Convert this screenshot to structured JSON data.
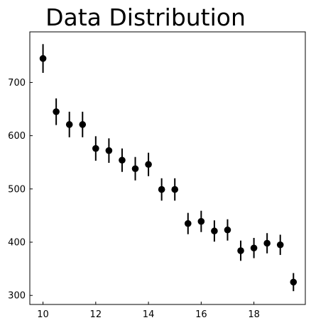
{
  "chart_data": {
    "type": "scatter",
    "title": "Data Distribution",
    "xlabel": "",
    "ylabel": "",
    "xlim": [
      9.5,
      19.95
    ],
    "ylim": [
      283,
      795
    ],
    "x_ticks": [
      10,
      12,
      14,
      16,
      18
    ],
    "y_ticks": [
      300,
      400,
      500,
      600,
      700
    ],
    "grid": false,
    "marker_color": "#000000",
    "x": [
      10,
      10.5,
      11,
      11.5,
      12,
      12.5,
      13,
      13.5,
      14,
      14.5,
      15,
      15.5,
      16,
      16.5,
      17,
      17.5,
      18,
      18.5,
      19,
      19.5
    ],
    "y": [
      745,
      645,
      621,
      621,
      576,
      572,
      554,
      538,
      546,
      499,
      499,
      435,
      439,
      421,
      423,
      384,
      389,
      398,
      395,
      325
    ],
    "y_err": [
      27,
      25,
      24,
      24,
      23,
      23,
      22,
      22,
      22,
      21,
      21,
      20,
      20,
      20,
      20,
      19,
      19,
      19,
      19,
      17
    ]
  }
}
